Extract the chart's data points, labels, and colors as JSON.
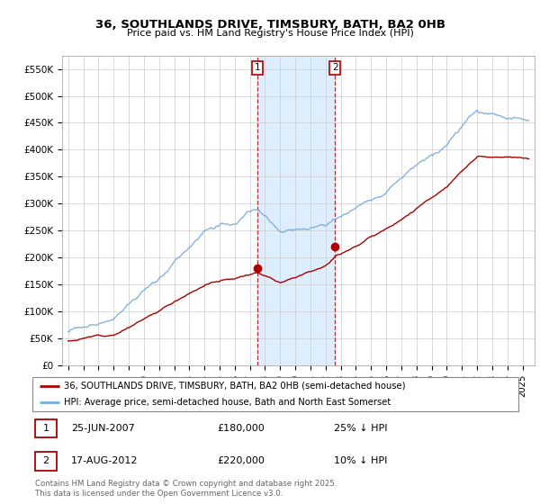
{
  "title": "36, SOUTHLANDS DRIVE, TIMSBURY, BATH, BA2 0HB",
  "subtitle": "Price paid vs. HM Land Registry's House Price Index (HPI)",
  "legend_label_red": "36, SOUTHLANDS DRIVE, TIMSBURY, BATH, BA2 0HB (semi-detached house)",
  "legend_label_blue": "HPI: Average price, semi-detached house, Bath and North East Somerset",
  "transaction1_date": "25-JUN-2007",
  "transaction1_price": "£180,000",
  "transaction1_hpi": "25% ↓ HPI",
  "transaction2_date": "17-AUG-2012",
  "transaction2_price": "£220,000",
  "transaction2_hpi": "10% ↓ HPI",
  "footer": "Contains HM Land Registry data © Crown copyright and database right 2025.\nThis data is licensed under the Open Government Licence v3.0.",
  "red_color": "#aa0000",
  "blue_color": "#7aaadd",
  "highlight_color": "#ddeeff",
  "transaction1_x": 2007.48,
  "transaction2_x": 2012.62,
  "transaction1_y": 180000,
  "transaction2_y": 220000,
  "ylim_min": 0,
  "ylim_max": 575000,
  "xlim_min": 1994.6,
  "xlim_max": 2025.8,
  "yticks": [
    0,
    50000,
    100000,
    150000,
    200000,
    250000,
    300000,
    350000,
    400000,
    450000,
    500000,
    550000
  ],
  "ytick_labels": [
    "£0",
    "£50K",
    "£100K",
    "£150K",
    "£200K",
    "£250K",
    "£300K",
    "£350K",
    "£400K",
    "£450K",
    "£500K",
    "£550K"
  ]
}
